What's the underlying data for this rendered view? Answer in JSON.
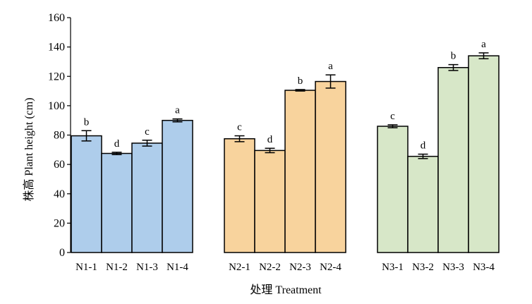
{
  "chart_data": {
    "type": "bar",
    "title": "",
    "xlabel": "处理 Treatment",
    "ylabel": "株高 Plant height (cm)",
    "ylim": [
      0,
      160
    ],
    "yticks": [
      0,
      20,
      40,
      60,
      80,
      100,
      120,
      140,
      160
    ],
    "grid": false,
    "legend": "none",
    "groups": [
      {
        "name": "N1",
        "color": "#aecdeb",
        "bars": [
          {
            "label": "N1-1",
            "value": 79.5,
            "err": 3.5,
            "sig": "b"
          },
          {
            "label": "N1-2",
            "value": 67.5,
            "err": 0.8,
            "sig": "d"
          },
          {
            "label": "N1-3",
            "value": 74.5,
            "err": 2.0,
            "sig": "c"
          },
          {
            "label": "N1-4",
            "value": 90.0,
            "err": 1.0,
            "sig": "a"
          }
        ]
      },
      {
        "name": "N2",
        "color": "#f8d39d",
        "bars": [
          {
            "label": "N2-1",
            "value": 77.5,
            "err": 2.0,
            "sig": "c"
          },
          {
            "label": "N2-2",
            "value": 69.5,
            "err": 1.5,
            "sig": "d"
          },
          {
            "label": "N2-3",
            "value": 110.5,
            "err": 0.5,
            "sig": "b"
          },
          {
            "label": "N2-4",
            "value": 116.5,
            "err": 4.5,
            "sig": "a"
          }
        ]
      },
      {
        "name": "N3",
        "color": "#d7e7c8",
        "bars": [
          {
            "label": "N3-1",
            "value": 86.0,
            "err": 1.0,
            "sig": "c"
          },
          {
            "label": "N3-2",
            "value": 65.5,
            "err": 1.5,
            "sig": "d"
          },
          {
            "label": "N3-3",
            "value": 126.0,
            "err": 2.0,
            "sig": "b"
          },
          {
            "label": "N3-4",
            "value": 134.0,
            "err": 2.0,
            "sig": "a"
          }
        ]
      }
    ]
  }
}
